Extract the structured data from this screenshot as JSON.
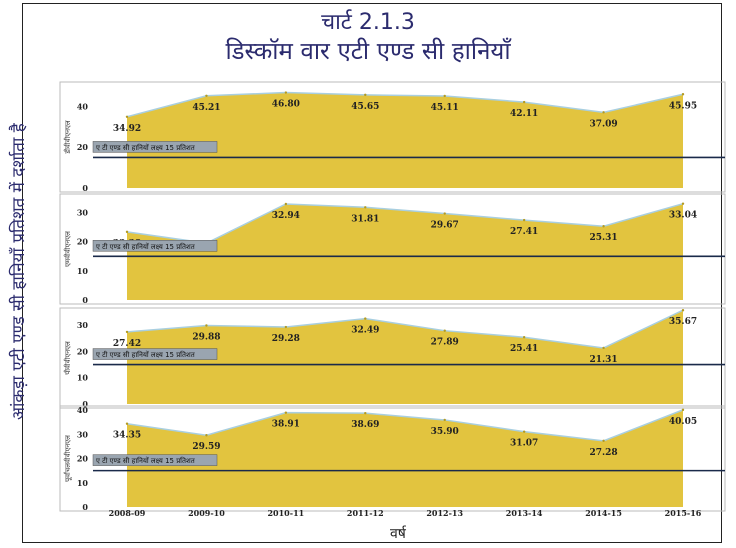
{
  "chart_data": {
    "type": "area",
    "title": "चार्ट 2.1.3",
    "subtitle": "डिस्कॉम वार एटी एण्ड सी हानियाँ",
    "ylabel": "आंकड़ा एटी एण्ड सी हानियाँ प्रतिशत में दर्शाता है",
    "xlabel": "वर्ष",
    "categories": [
      "2008-09",
      "2009-10",
      "2010-11",
      "2011-12",
      "2012-13",
      "2013-14",
      "2014-15",
      "2015-16"
    ],
    "target_label": "ए टी एण्ड सी हानियों लक्ष्य 15 प्रतिशत",
    "target_value": 15,
    "colors": {
      "fill": "#e2c43f",
      "edge": "#a9cfe0",
      "target": "#1a2a4a",
      "label_bg": "#9aa5b0"
    },
    "panels": [
      {
        "name": "डीवीवीएनएल",
        "values": [
          34.92,
          45.21,
          46.8,
          45.65,
          45.11,
          42.11,
          37.09,
          45.95
        ],
        "ylim": [
          0,
          50
        ],
        "ticks": [
          0,
          20,
          40
        ]
      },
      {
        "name": "एमवीवीएनएल",
        "values": [
          23.38,
          19.5,
          32.94,
          31.81,
          29.67,
          27.41,
          25.31,
          33.04
        ],
        "ylim": [
          0,
          35
        ],
        "ticks": [
          0,
          10,
          20,
          30
        ]
      },
      {
        "name": "पीवीवीएनएल",
        "values": [
          27.42,
          29.88,
          29.28,
          32.49,
          27.89,
          25.41,
          21.31,
          35.67
        ],
        "ylim": [
          0,
          35
        ],
        "ticks": [
          0,
          10,
          20,
          30
        ]
      },
      {
        "name": "पूर्वांचलवीवीएनएल",
        "values": [
          34.35,
          29.59,
          38.91,
          38.69,
          35.9,
          31.07,
          27.28,
          40.05
        ],
        "ylim": [
          0,
          40
        ],
        "ticks": [
          0,
          10,
          20,
          30,
          40
        ]
      }
    ],
    "value_labels": [
      [
        "34.92",
        "45.21",
        "46.80",
        "45.65",
        "45.11",
        "42.11",
        "37.09",
        "45.95"
      ],
      [
        "23.38",
        "",
        "32.94",
        "31.81",
        "29.67",
        "27.41",
        "25.31",
        "33.04"
      ],
      [
        "27.42",
        "29.88",
        "29.28",
        "32.49",
        "27.89",
        "25.41",
        "21.31",
        "35.67"
      ],
      [
        "34.35",
        "29.59",
        "38.91",
        "38.69",
        "35.90",
        "31.07",
        "27.28",
        "40.05"
      ]
    ]
  }
}
